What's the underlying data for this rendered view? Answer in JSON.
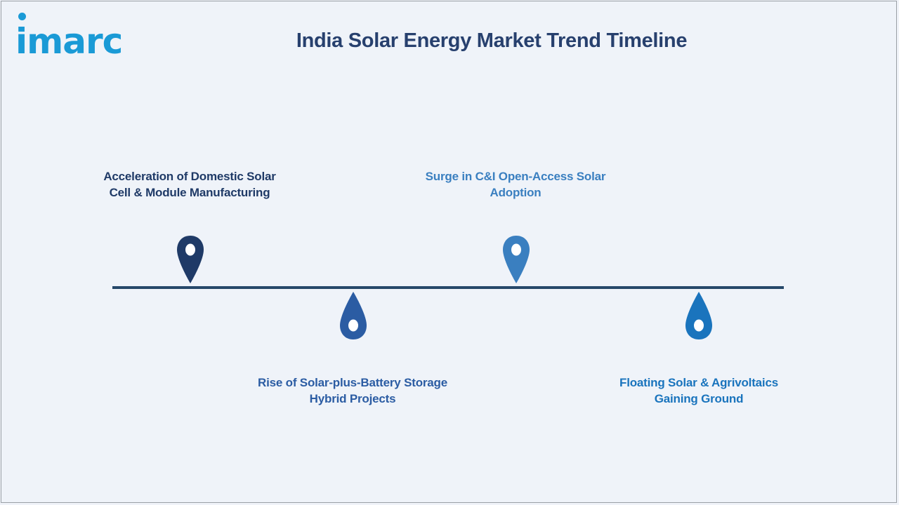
{
  "header": {
    "logo_text": "imarc",
    "title": "India Solar Energy Market Trend Timeline"
  },
  "timeline": {
    "events": [
      {
        "label_line1": "Acceleration of Domestic Solar",
        "label_line2": "Cell & Module Manufacturing",
        "color": "#1f3a67",
        "position": "above"
      },
      {
        "label_line1": "Rise of Solar-plus-Battery Storage",
        "label_line2": "Hybrid Projects",
        "color": "#2b5ca3",
        "position": "below"
      },
      {
        "label_line1": "Surge in C&I Open-Access Solar",
        "label_line2": "Adoption",
        "color": "#3a7fc0",
        "position": "above"
      },
      {
        "label_line1": "Floating Solar & Agrivoltaics",
        "label_line2": "Gaining Ground",
        "color": "#1a74bd",
        "position": "below"
      }
    ],
    "axis_color": "#26486a",
    "icons": {
      "marker_up": "map-pin-icon",
      "marker_down": "drop-icon"
    }
  }
}
